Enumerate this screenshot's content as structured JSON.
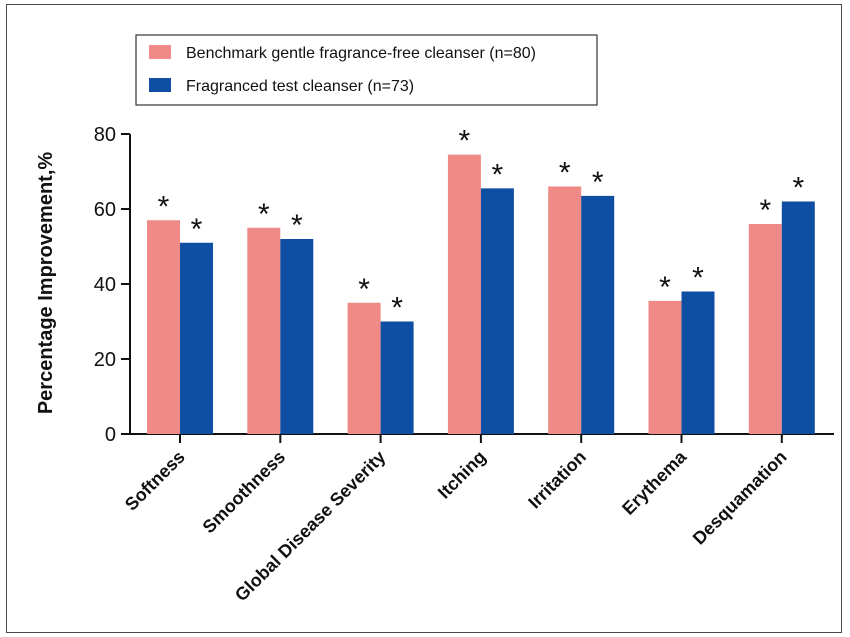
{
  "chart_data": {
    "type": "bar",
    "title": "",
    "xlabel": "",
    "ylabel": "Percentage Improvement,%",
    "ylim": [
      0,
      80
    ],
    "yticks": [
      0,
      20,
      40,
      60,
      80
    ],
    "grid": false,
    "legend_position": "top-left",
    "categories": [
      "Softness",
      "Smoothness",
      "Global Disease Severity",
      "Itching",
      "Irritation",
      "Erythema",
      "Desquamation"
    ],
    "series": [
      {
        "name": "Benchmark gentle fragrance-free cleanser (n=80)",
        "color": "#F08A87",
        "values": [
          57,
          55,
          35,
          74.5,
          66,
          35.5,
          56
        ],
        "markers": [
          "*",
          "*",
          "*",
          "*",
          "*",
          "*",
          "*"
        ]
      },
      {
        "name": "Fragranced test cleanser (n=73)",
        "color": "#0E4EA3",
        "values": [
          51,
          52,
          30,
          65.5,
          63.5,
          38,
          62
        ],
        "markers": [
          "*",
          "*",
          "*",
          "*",
          "*",
          "*",
          "*"
        ]
      }
    ]
  }
}
